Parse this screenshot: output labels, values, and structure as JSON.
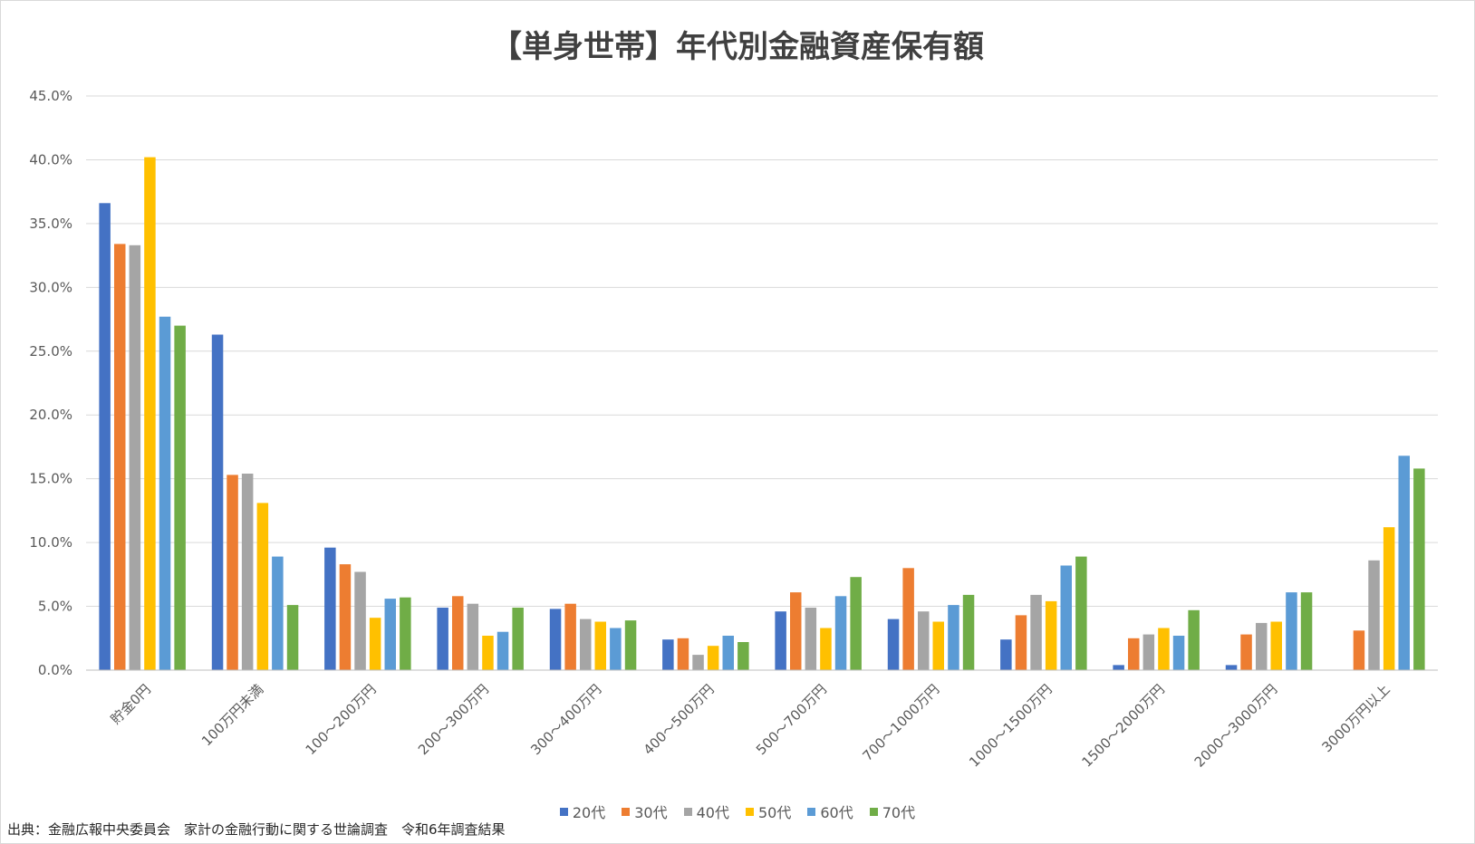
{
  "chart_data": {
    "type": "bar",
    "title": "【単身世帯】年代別金融資産保有額",
    "xlabel": "",
    "ylabel": "",
    "ylim": [
      0,
      45
    ],
    "y_ticks": [
      "0.0%",
      "5.0%",
      "10.0%",
      "15.0%",
      "20.0%",
      "25.0%",
      "30.0%",
      "35.0%",
      "40.0%",
      "45.0%"
    ],
    "grid": true,
    "legend_position": "bottom",
    "categories": [
      "貯金0円",
      "100万円未満",
      "100～200万円",
      "200～300万円",
      "300～400万円",
      "400～500万円",
      "500～700万円",
      "700～1000万円",
      "1000～1500万円",
      "1500～2000万円",
      "2000～3000万円",
      "3000万円以上"
    ],
    "series": [
      {
        "name": "20代",
        "color": "#4472C4",
        "values": [
          36.6,
          26.3,
          9.6,
          4.9,
          4.8,
          2.4,
          4.6,
          4.0,
          2.4,
          0.4,
          0.4,
          0.0
        ]
      },
      {
        "name": "30代",
        "color": "#ED7D31",
        "values": [
          33.4,
          15.3,
          8.3,
          5.8,
          5.2,
          2.5,
          6.1,
          8.0,
          4.3,
          2.5,
          2.8,
          3.1
        ]
      },
      {
        "name": "40代",
        "color": "#A5A5A5",
        "values": [
          33.3,
          15.4,
          7.7,
          5.2,
          4.0,
          1.2,
          4.9,
          4.6,
          5.9,
          2.8,
          3.7,
          8.6
        ]
      },
      {
        "name": "50代",
        "color": "#FFC000",
        "values": [
          40.2,
          13.1,
          4.1,
          2.7,
          3.8,
          1.9,
          3.3,
          3.8,
          5.4,
          3.3,
          3.8,
          11.2
        ]
      },
      {
        "name": "60代",
        "color": "#5B9BD5",
        "values": [
          27.7,
          8.9,
          5.6,
          3.0,
          3.3,
          2.7,
          5.8,
          5.1,
          8.2,
          2.7,
          6.1,
          16.8
        ]
      },
      {
        "name": "70代",
        "color": "#70AD47",
        "values": [
          27.0,
          5.1,
          5.7,
          4.9,
          3.9,
          2.2,
          7.3,
          5.9,
          8.9,
          4.7,
          6.1,
          15.8
        ]
      }
    ]
  },
  "source_note": "出典：金融広報中央委員会　家計の金融行動に関する世論調査　令和6年調査結果"
}
